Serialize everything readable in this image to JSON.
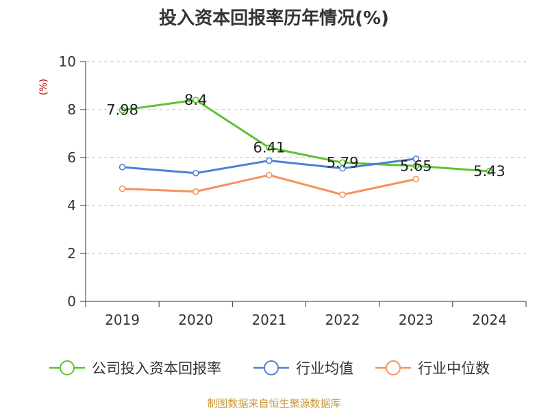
{
  "chart_data": {
    "type": "line",
    "title": "投入资本回报率历年情况(%)",
    "ylabel": "(%)",
    "categories": [
      "2019",
      "2020",
      "2021",
      "2022",
      "2023",
      "2024"
    ],
    "ylim": [
      0,
      10
    ],
    "yticks": [
      0,
      2,
      4,
      6,
      8,
      10
    ],
    "grid": true,
    "legend_position": "bottom",
    "series": [
      {
        "name": "公司投入资本回报率",
        "color": "#5cc32f",
        "values": [
          7.98,
          8.4,
          6.41,
          5.79,
          5.65,
          5.43
        ],
        "labels": [
          "7.98",
          "8.4",
          "6.41",
          "5.79",
          "5.65",
          "5.43"
        ]
      },
      {
        "name": "行业均值",
        "color": "#4f7fd8",
        "values": [
          5.6,
          5.35,
          5.87,
          5.55,
          5.95,
          null
        ]
      },
      {
        "name": "行业中位数",
        "color": "#f5915a",
        "values": [
          4.7,
          4.58,
          5.27,
          4.45,
          5.1,
          null
        ]
      }
    ]
  },
  "footer": "制图数据来自恒生聚源数据库"
}
